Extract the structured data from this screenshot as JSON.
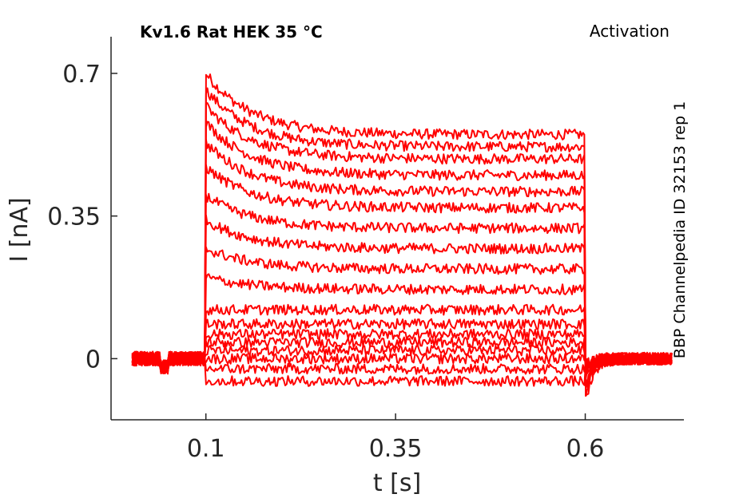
{
  "chart_data": {
    "type": "line",
    "title": "Kv1.6  Rat  HEK  35 °C",
    "subtitle": "Activation",
    "side_label": "BBP Channelpedia ID 32153 rep 1",
    "xlabel": "t [s]",
    "ylabel": "I [nA]",
    "xlim": [
      -0.025,
      0.73
    ],
    "ylim": [
      -0.15,
      0.79
    ],
    "x_ticks": [
      0.1,
      0.35,
      0.6
    ],
    "x_tick_labels": [
      "0.1",
      "0.35",
      "0.6"
    ],
    "y_ticks": [
      0,
      0.35,
      0.7
    ],
    "y_tick_labels": [
      "0",
      "0.35",
      "0.7"
    ],
    "grid": false,
    "line_color": "#ff0000",
    "step_on": 0.1,
    "step_off": 0.6,
    "trace_start": 0.003,
    "trace_end": 0.715,
    "series": [
      {
        "peak": 0.7,
        "steady": 0.55,
        "tail": -0.11
      },
      {
        "peak": 0.66,
        "steady": 0.52,
        "tail": -0.09
      },
      {
        "peak": 0.62,
        "steady": 0.49,
        "tail": -0.08
      },
      {
        "peak": 0.58,
        "steady": 0.45,
        "tail": -0.07
      },
      {
        "peak": 0.53,
        "steady": 0.41,
        "tail": -0.06
      },
      {
        "peak": 0.47,
        "steady": 0.37,
        "tail": -0.05
      },
      {
        "peak": 0.4,
        "steady": 0.32,
        "tail": -0.04
      },
      {
        "peak": 0.34,
        "steady": 0.27,
        "tail": -0.03
      },
      {
        "peak": 0.27,
        "steady": 0.22,
        "tail": -0.03
      },
      {
        "peak": 0.2,
        "steady": 0.17,
        "tail": -0.02
      },
      {
        "peak": 0.12,
        "steady": 0.12,
        "tail": -0.02
      },
      {
        "peak": 0.085,
        "steady": 0.085,
        "tail": -0.02
      },
      {
        "peak": 0.06,
        "steady": 0.06,
        "tail": -0.02
      },
      {
        "peak": 0.04,
        "steady": 0.04,
        "tail": -0.02
      },
      {
        "peak": 0.02,
        "steady": 0.02,
        "tail": -0.02
      },
      {
        "peak": 0.0,
        "steady": 0.0,
        "tail": -0.02
      },
      {
        "peak": -0.025,
        "steady": -0.025,
        "tail": -0.02
      },
      {
        "peak": -0.055,
        "steady": -0.055,
        "tail": -0.02
      }
    ]
  }
}
